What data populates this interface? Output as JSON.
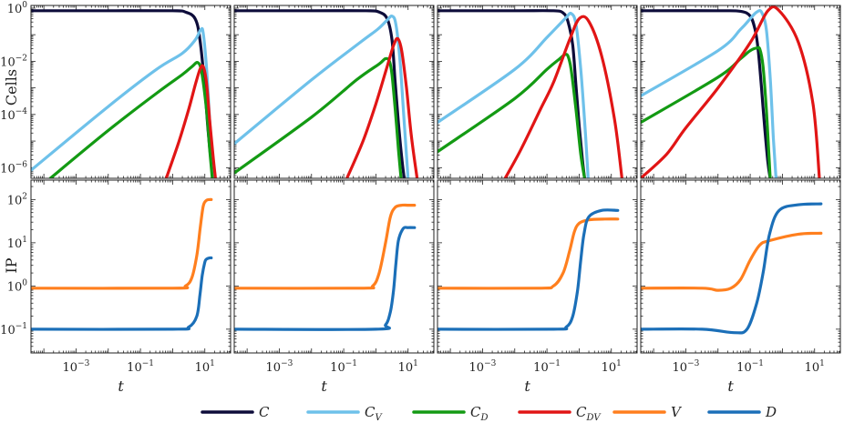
{
  "figure": {
    "x_label": "t",
    "top_ylabel": "Cells",
    "bottom_ylabel": "IP",
    "x_ticks": [
      {
        "exp": -3,
        "label": "10",
        "sup": "−3"
      },
      {
        "exp": -1,
        "label": "10",
        "sup": "−1"
      },
      {
        "exp": 1,
        "label": "10",
        "sup": "1"
      }
    ],
    "top_yticks": [
      {
        "exp": 0,
        "label": "10",
        "sup": "0"
      },
      {
        "exp": -2,
        "label": "10",
        "sup": "−2"
      },
      {
        "exp": -4,
        "label": "10",
        "sup": "−4"
      },
      {
        "exp": -6,
        "label": "10",
        "sup": "−6"
      }
    ],
    "bottom_yticks": [
      {
        "exp": 2,
        "label": "10",
        "sup": "2"
      },
      {
        "exp": 1,
        "label": "10",
        "sup": "1"
      },
      {
        "exp": 0,
        "label": "10",
        "sup": "0"
      },
      {
        "exp": -1,
        "label": "10",
        "sup": "−1"
      }
    ],
    "legend": [
      {
        "key": "C",
        "name": "C",
        "sub": "",
        "color": "#0d0c3a"
      },
      {
        "key": "CV",
        "name": "C",
        "sub": "V",
        "color": "#6ec1ea"
      },
      {
        "key": "CD",
        "name": "C",
        "sub": "D",
        "color": "#139a13"
      },
      {
        "key": "CDV",
        "name": "C",
        "sub": "DV",
        "color": "#e11515"
      },
      {
        "key": "V",
        "name": "V",
        "sub": "",
        "color": "#ff7f1e"
      },
      {
        "key": "D",
        "name": "D",
        "sub": "",
        "color": "#1b6fb8"
      }
    ]
  },
  "chart_data": [
    {
      "type": "line",
      "panel": "top",
      "column": 1,
      "xscale": "log",
      "yscale": "log",
      "xlim_log10": [
        -4.4,
        1.8
      ],
      "ylim_log10": [
        -6.4,
        0.1
      ],
      "series": [
        {
          "name": "C",
          "x_log10": [
            -4.4,
            -2,
            0,
            0.4,
            0.7,
            0.85,
            1.0,
            1.1,
            1.2,
            1.28
          ],
          "y_log10": [
            -0.1,
            -0.1,
            -0.1,
            -0.15,
            -0.4,
            -1.2,
            -3.0,
            -4.6,
            -5.8,
            -6.4
          ]
        },
        {
          "name": "CV",
          "x_log10": [
            -4.4,
            -2,
            -0.5,
            0.3,
            0.7,
            0.88,
            0.95,
            1.05,
            1.15,
            1.28
          ],
          "y_log10": [
            -6.1,
            -3.7,
            -2.3,
            -1.7,
            -1.2,
            -0.8,
            -0.95,
            -2.2,
            -4.2,
            -6.4
          ]
        },
        {
          "name": "CD",
          "x_log10": [
            -3.8,
            -2,
            -0.5,
            0.3,
            0.6,
            0.78,
            0.9,
            1.05,
            1.15,
            1.23
          ],
          "y_log10": [
            -6.4,
            -4.6,
            -3.2,
            -2.5,
            -2.2,
            -2.05,
            -2.4,
            -3.8,
            -5.3,
            -6.4
          ]
        },
        {
          "name": "CDV",
          "x_log10": [
            -0.2,
            0.2,
            0.5,
            0.7,
            0.85,
            0.95,
            1.05,
            1.15,
            1.25,
            1.33
          ],
          "y_log10": [
            -6.4,
            -5.0,
            -3.8,
            -2.9,
            -2.3,
            -2.2,
            -2.8,
            -4.2,
            -5.5,
            -6.4
          ]
        }
      ]
    },
    {
      "type": "line",
      "panel": "top",
      "column": 2,
      "xscale": "log",
      "yscale": "log",
      "xlim_log10": [
        -4.4,
        1.8
      ],
      "ylim_log10": [
        -6.4,
        0.1
      ],
      "series": [
        {
          "name": "C",
          "x_log10": [
            -4.4,
            -2,
            -0.3,
            0.1,
            0.35,
            0.5,
            0.6,
            0.7,
            0.8,
            0.88
          ],
          "y_log10": [
            -0.1,
            -0.1,
            -0.1,
            -0.15,
            -0.4,
            -1.2,
            -2.8,
            -4.3,
            -5.6,
            -6.4
          ]
        },
        {
          "name": "CV",
          "x_log10": [
            -4.4,
            -2,
            -0.5,
            0.05,
            0.35,
            0.5,
            0.62,
            0.75,
            0.88,
            1.0
          ],
          "y_log10": [
            -5.1,
            -2.7,
            -1.3,
            -0.8,
            -0.45,
            -0.3,
            -0.6,
            -2.0,
            -4.3,
            -6.4
          ]
        },
        {
          "name": "CD",
          "x_log10": [
            -4.4,
            -2,
            -0.6,
            0.1,
            0.3,
            0.42,
            0.5,
            0.6,
            0.7,
            0.78
          ],
          "y_log10": [
            -6.2,
            -4.1,
            -2.7,
            -2.1,
            -1.9,
            -2.0,
            -2.5,
            -3.8,
            -5.3,
            -6.4
          ]
        },
        {
          "name": "CDV",
          "x_log10": [
            -0.9,
            -0.4,
            0,
            0.3,
            0.55,
            0.68,
            0.8,
            0.95,
            1.1,
            1.28
          ],
          "y_log10": [
            -6.4,
            -5.0,
            -3.6,
            -2.4,
            -1.4,
            -1.15,
            -1.6,
            -3.0,
            -4.8,
            -6.4
          ]
        }
      ]
    },
    {
      "type": "line",
      "panel": "top",
      "column": 3,
      "xscale": "log",
      "yscale": "log",
      "xlim_log10": [
        -4.4,
        1.8
      ],
      "ylim_log10": [
        -6.4,
        0.1
      ],
      "series": [
        {
          "name": "C",
          "x_log10": [
            -4.4,
            -2,
            -0.8,
            -0.5,
            -0.35,
            -0.2,
            -0.1,
            0,
            0.1,
            0.17
          ],
          "y_log10": [
            -0.1,
            -0.1,
            -0.1,
            -0.18,
            -0.5,
            -1.4,
            -2.9,
            -4.4,
            -5.7,
            -6.4
          ]
        },
        {
          "name": "CV",
          "x_log10": [
            -4.4,
            -2,
            -1.0,
            -0.6,
            -0.4,
            -0.25,
            -0.1,
            0.05,
            0.2,
            0.28
          ],
          "y_log10": [
            -4.3,
            -2.3,
            -1.1,
            -0.6,
            -0.35,
            -0.2,
            -0.6,
            -2.3,
            -4.8,
            -6.4
          ]
        },
        {
          "name": "CD",
          "x_log10": [
            -4.4,
            -2,
            -1.0,
            -0.6,
            -0.45,
            -0.35,
            -0.25,
            -0.1,
            0.05,
            0.17
          ],
          "y_log10": [
            -5.4,
            -3.4,
            -2.3,
            -1.9,
            -1.75,
            -1.8,
            -2.3,
            -3.8,
            -5.5,
            -6.4
          ]
        },
        {
          "name": "CDV",
          "x_log10": [
            -2.3,
            -1.8,
            -1.2,
            -0.8,
            -0.3,
            0,
            0.3,
            0.7,
            1.1,
            1.33
          ],
          "y_log10": [
            -6.4,
            -5.3,
            -3.8,
            -2.8,
            -1.2,
            -0.4,
            -0.5,
            -1.8,
            -4.2,
            -6.4
          ]
        }
      ]
    },
    {
      "type": "line",
      "panel": "top",
      "column": 4,
      "xscale": "log",
      "yscale": "log",
      "xlim_log10": [
        -4.4,
        1.8
      ],
      "ylim_log10": [
        -6.4,
        0.1
      ],
      "series": [
        {
          "name": "C",
          "x_log10": [
            -4.4,
            -2,
            -1.3,
            -1.0,
            -0.85,
            -0.75,
            -0.65,
            -0.55,
            -0.45,
            -0.38
          ],
          "y_log10": [
            -0.1,
            -0.1,
            -0.12,
            -0.3,
            -0.8,
            -1.6,
            -3.0,
            -4.5,
            -5.8,
            -6.4
          ]
        },
        {
          "name": "CV",
          "x_log10": [
            -4.4,
            -2,
            -1.3,
            -1.0,
            -0.8,
            -0.65,
            -0.5,
            -0.38,
            -0.28,
            -0.2
          ],
          "y_log10": [
            -3.3,
            -1.6,
            -0.8,
            -0.4,
            -0.15,
            -0.15,
            -0.8,
            -2.6,
            -4.9,
            -6.4
          ]
        },
        {
          "name": "CD",
          "x_log10": [
            -4.4,
            -2,
            -1.3,
            -1.0,
            -0.8,
            -0.7,
            -0.6,
            -0.5,
            -0.42,
            -0.38
          ],
          "y_log10": [
            -4.3,
            -2.6,
            -1.9,
            -1.6,
            -1.5,
            -1.55,
            -2.2,
            -3.8,
            -5.5,
            -6.4
          ]
        },
        {
          "name": "CDV",
          "x_log10": [
            -4.4,
            -3.6,
            -3.0,
            -2.0,
            -1.0,
            -0.45,
            -0.1,
            0.5,
            0.95,
            1.15
          ],
          "y_log10": [
            -6.4,
            -5.5,
            -4.5,
            -3.0,
            -1.3,
            -0.1,
            -0.1,
            -1.3,
            -3.6,
            -6.4
          ]
        }
      ]
    },
    {
      "type": "line",
      "panel": "bottom",
      "column": 1,
      "xscale": "log",
      "yscale": "log",
      "xlim_log10": [
        -4.4,
        1.8
      ],
      "ylim_log10": [
        -1.55,
        2.45
      ],
      "series": [
        {
          "name": "V",
          "x_log10": [
            -4.4,
            0,
            0.4,
            0.6,
            0.75,
            0.85,
            0.95,
            1.05,
            1.15,
            1.2
          ],
          "y_log10": [
            -0.05,
            -0.05,
            0.0,
            0.2,
            0.7,
            1.3,
            1.85,
            1.98,
            2.0,
            2.0
          ]
        },
        {
          "name": "D",
          "x_log10": [
            -4.4,
            0,
            0.5,
            0.75,
            0.85,
            0.92,
            1.0,
            1.05,
            1.15,
            1.2
          ],
          "y_log10": [
            -1.0,
            -1.0,
            -0.95,
            -0.7,
            -0.2,
            0.25,
            0.55,
            0.62,
            0.65,
            0.65
          ]
        }
      ]
    },
    {
      "type": "line",
      "panel": "bottom",
      "column": 2,
      "xscale": "log",
      "yscale": "log",
      "xlim_log10": [
        -4.4,
        1.8
      ],
      "ylim_log10": [
        -1.55,
        2.45
      ],
      "series": [
        {
          "name": "V",
          "x_log10": [
            -4.4,
            -0.5,
            -0.1,
            0.1,
            0.3,
            0.45,
            0.6,
            0.8,
            1.0,
            1.2
          ],
          "y_log10": [
            -0.05,
            -0.05,
            0.0,
            0.3,
            1.0,
            1.6,
            1.82,
            1.87,
            1.87,
            1.87
          ]
        },
        {
          "name": "D",
          "x_log10": [
            -4.4,
            0,
            0.3,
            0.45,
            0.55,
            0.62,
            0.7,
            0.85,
            1.0,
            1.2
          ],
          "y_log10": [
            -1.0,
            -1.0,
            -0.9,
            -0.6,
            -0.1,
            0.5,
            1.05,
            1.33,
            1.35,
            1.35
          ]
        }
      ]
    },
    {
      "type": "line",
      "panel": "bottom",
      "column": 3,
      "xscale": "log",
      "yscale": "log",
      "xlim_log10": [
        -4.4,
        1.8
      ],
      "ylim_log10": [
        -1.55,
        2.45
      ],
      "series": [
        {
          "name": "V",
          "x_log10": [
            -4.4,
            -1.3,
            -0.8,
            -0.5,
            -0.3,
            -0.15,
            0,
            0.3,
            0.8,
            1.2
          ],
          "y_log10": [
            -0.05,
            -0.05,
            0.0,
            0.3,
            0.8,
            1.25,
            1.45,
            1.53,
            1.55,
            1.55
          ]
        },
        {
          "name": "D",
          "x_log10": [
            -4.4,
            -0.8,
            -0.4,
            -0.2,
            -0.05,
            0.05,
            0.15,
            0.3,
            0.7,
            1.2
          ],
          "y_log10": [
            -1.0,
            -1.0,
            -0.95,
            -0.7,
            -0.1,
            0.6,
            1.2,
            1.6,
            1.75,
            1.75
          ]
        }
      ]
    },
    {
      "type": "line",
      "panel": "bottom",
      "column": 4,
      "xscale": "log",
      "yscale": "log",
      "xlim_log10": [
        -4.4,
        1.8
      ],
      "ylim_log10": [
        -1.55,
        2.45
      ],
      "series": [
        {
          "name": "V",
          "x_log10": [
            -4.4,
            -2.5,
            -2.0,
            -1.6,
            -1.3,
            -1.0,
            -0.7,
            -0.4,
            0.5,
            1.2
          ],
          "y_log10": [
            -0.05,
            -0.05,
            -0.1,
            -0.05,
            0.15,
            0.6,
            0.95,
            1.05,
            1.2,
            1.22
          ]
        },
        {
          "name": "D",
          "x_log10": [
            -4.4,
            -2.5,
            -1.5,
            -1.1,
            -0.8,
            -0.6,
            -0.4,
            -0.1,
            0.5,
            1.2
          ],
          "y_log10": [
            -1.0,
            -1.0,
            -1.08,
            -1.0,
            -0.4,
            0.3,
            1.2,
            1.75,
            1.88,
            1.9
          ]
        }
      ]
    }
  ]
}
